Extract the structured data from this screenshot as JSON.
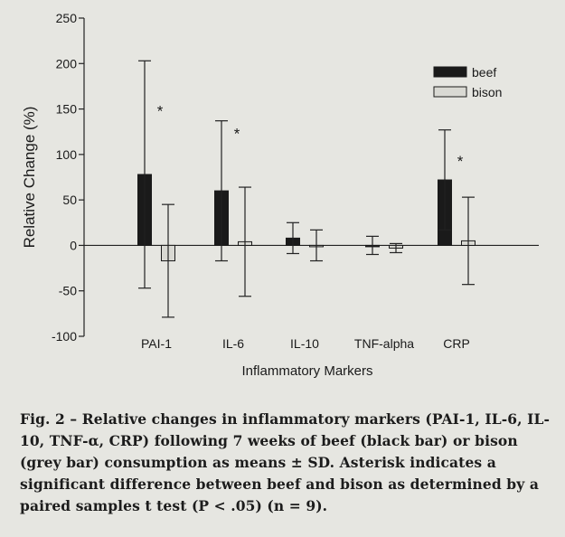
{
  "chart_data": {
    "type": "bar",
    "xlabel": "Inflammatory Markers",
    "ylabel": "Relative Change (%)",
    "ylim": [
      -100,
      250
    ],
    "yticks": [
      -100,
      -50,
      0,
      50,
      100,
      150,
      200,
      250
    ],
    "yticklabels": [
      "-100",
      "-50",
      "0",
      "50",
      "100",
      "150",
      "200",
      "250"
    ],
    "categories": [
      "PAI-1",
      "IL-6",
      "IL-10",
      "TNF-alpha",
      "CRP"
    ],
    "series": [
      {
        "name": "beef",
        "color": "#1a1a1a",
        "values": [
          78,
          60,
          8,
          0,
          72
        ],
        "sd": [
          125,
          77,
          17,
          10,
          55
        ]
      },
      {
        "name": "bison",
        "color": "#d9d9d3",
        "values": [
          -17,
          4,
          0,
          -3,
          5
        ],
        "sd": [
          62,
          60,
          17,
          5,
          48
        ]
      }
    ],
    "significance": [
      {
        "category": "PAI-1",
        "symbol": "*",
        "y": 150
      },
      {
        "category": "IL-6",
        "symbol": "*",
        "y": 125
      },
      {
        "category": "CRP",
        "symbol": "*",
        "y": 95
      }
    ],
    "legend": "top-right",
    "grid": false
  },
  "caption": {
    "label": "Fig. 2 – ",
    "text": "Relative changes in inflammatory markers (PAI-1, IL-6, IL-10, TNF-α, CRP) following 7 weeks of beef (black bar) or bison (grey bar) consumption as means ± SD. Asterisk indicates a significant difference between beef and bison as determined by a paired samples t test (P < .05) (n = 9)."
  }
}
